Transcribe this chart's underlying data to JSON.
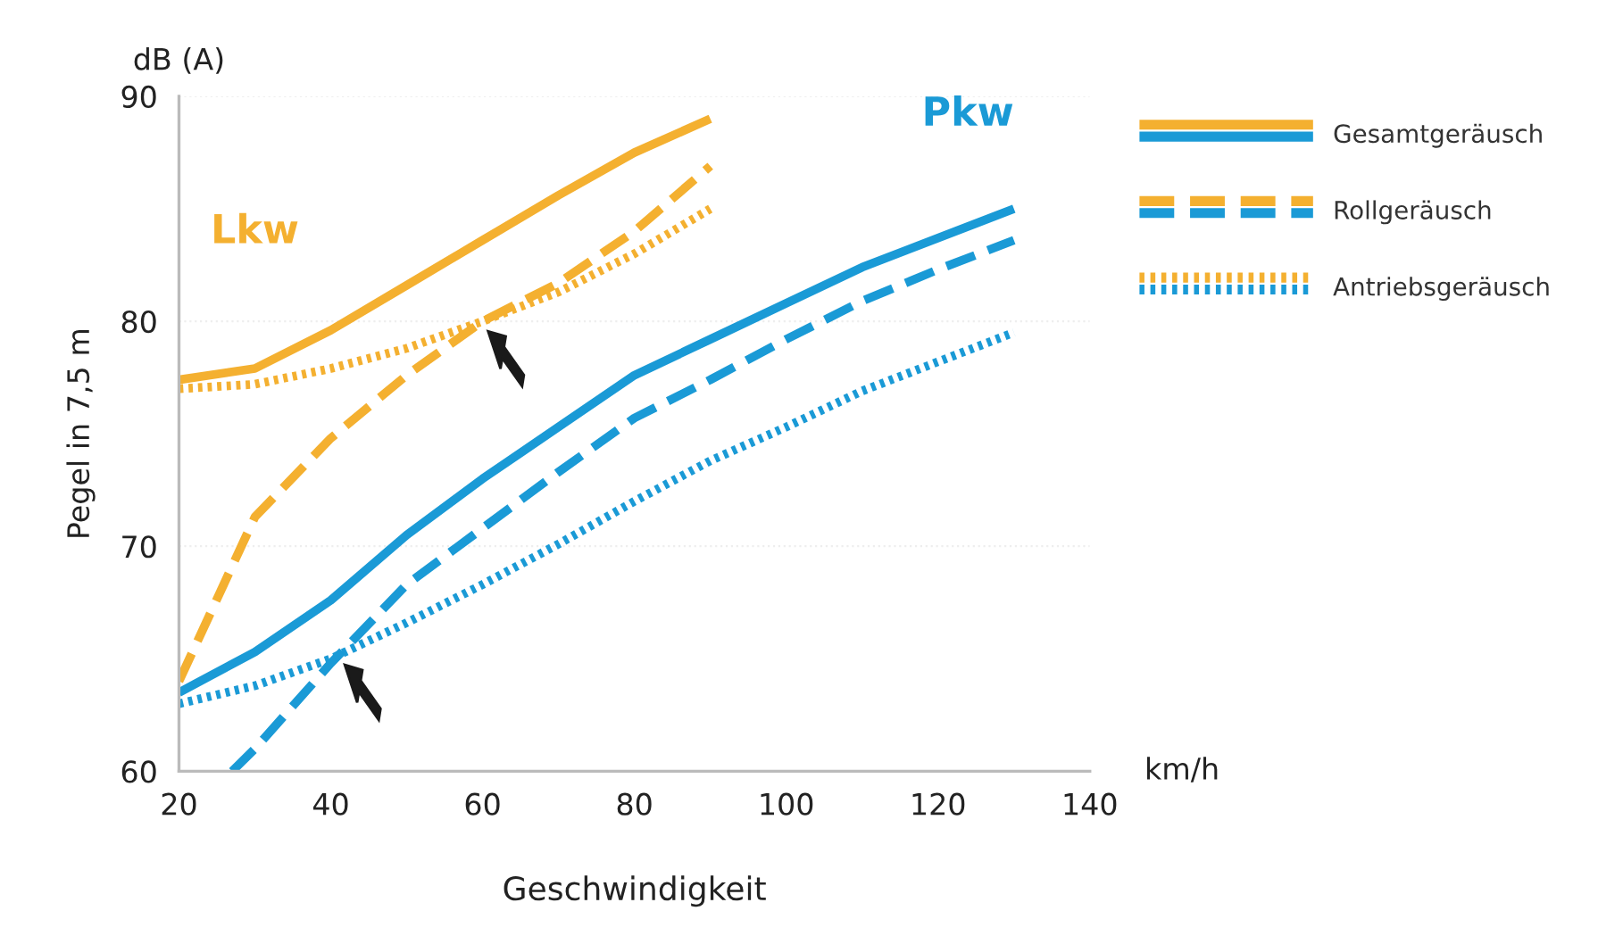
{
  "chart_data": {
    "type": "line",
    "xlabel": "Geschwindigkeit",
    "ylabel": "Pegel in 7,5 m",
    "xlim": [
      20,
      140
    ],
    "xticks": [
      20,
      40,
      60,
      80,
      100,
      120,
      140
    ],
    "ylim": [
      60,
      90
    ],
    "yticks": [
      60,
      70,
      80,
      90
    ],
    "grid": "y",
    "legend": "top right",
    "annotations": [
      "Lkw",
      "Pkw",
      "dB (A)",
      "km/h"
    ],
    "series": [
      {
        "name": "Gesamtgeräusch",
        "color": "#f4b030",
        "line_style": "solid",
        "x": [
          20,
          30,
          40,
          50,
          60,
          70,
          80,
          90
        ],
        "values": [
          77.4,
          77.9,
          79.6,
          81.6,
          83.6,
          85.6,
          87.5,
          89.0
        ]
      },
      {
        "name": "Rollgeräusch",
        "color": "#f4b030",
        "line_style": "dashed",
        "x": [
          20,
          30,
          40,
          50,
          60,
          70,
          80,
          90
        ],
        "values": [
          64.0,
          71.3,
          74.8,
          77.6,
          80.0,
          81.7,
          84.0,
          86.9
        ]
      },
      {
        "name": "Antriebsgeräusch",
        "color": "#f4b030",
        "line_style": "dotted",
        "x": [
          20,
          30,
          40,
          50,
          60,
          70,
          80,
          90
        ],
        "values": [
          77.0,
          77.2,
          77.9,
          78.8,
          80.0,
          81.3,
          83.0,
          85.0
        ]
      },
      {
        "color": "#1a9ad6",
        "line_style": "solid",
        "x": [
          20,
          30,
          40,
          50,
          60,
          70,
          80,
          90,
          100,
          110,
          120,
          130
        ],
        "values": [
          63.5,
          65.3,
          67.6,
          70.5,
          73.0,
          75.3,
          77.6,
          79.2,
          80.8,
          82.4,
          83.7,
          85.0
        ]
      },
      {
        "color": "#1a9ad6",
        "line_style": "dashed",
        "x": [
          27,
          30,
          40,
          50,
          60,
          70,
          80,
          90,
          100,
          110,
          120,
          130
        ],
        "values": [
          60.0,
          61.0,
          64.8,
          68.3,
          70.8,
          73.3,
          75.7,
          77.4,
          79.2,
          80.9,
          82.3,
          83.6
        ]
      },
      {
        "color": "#1a9ad6",
        "line_style": "dotted",
        "x": [
          20,
          30,
          40,
          50,
          60,
          70,
          80,
          90,
          100,
          110,
          120,
          130
        ],
        "values": [
          63.0,
          63.8,
          65.0,
          66.6,
          68.3,
          70.1,
          72.0,
          73.8,
          75.3,
          76.9,
          78.2,
          79.5
        ]
      }
    ]
  }
}
